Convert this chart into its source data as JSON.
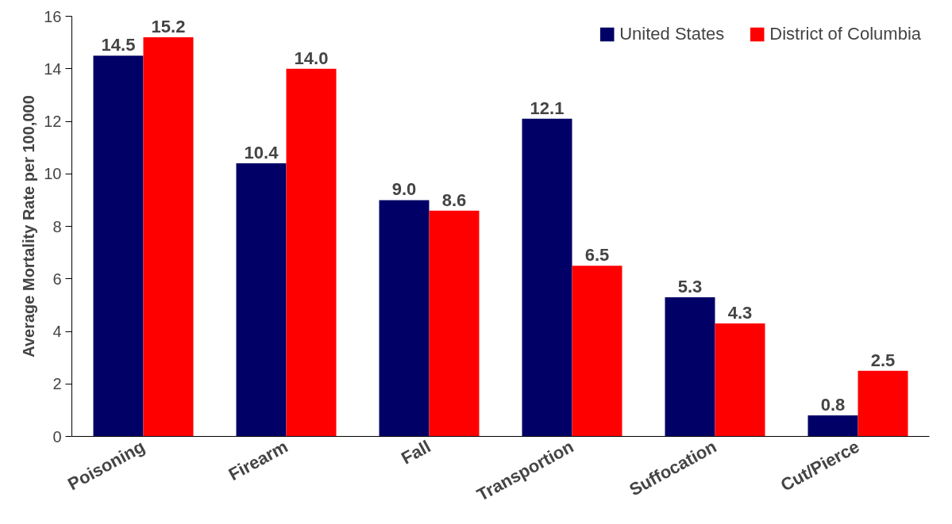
{
  "chart_data": {
    "type": "bar",
    "ylabel": "Average Mortality Rate per 100,000",
    "categories": [
      "Poisoning",
      "Firearm",
      "Fall",
      "Transportion",
      "Suffocation",
      "Cut/Pierce"
    ],
    "series": [
      {
        "name": "United States",
        "color": "#000066",
        "values": [
          14.5,
          10.4,
          9.0,
          12.1,
          5.3,
          0.8
        ],
        "value_labels": [
          "14.5",
          "10.4",
          "9.0",
          "12.1",
          "5.3",
          "0.8"
        ]
      },
      {
        "name": "District of Columbia",
        "color": "#ff0000",
        "values": [
          15.2,
          14.0,
          8.6,
          6.5,
          4.3,
          2.5
        ],
        "value_labels": [
          "15.2",
          "14.0",
          "8.6",
          "6.5",
          "4.3",
          "2.5"
        ]
      }
    ],
    "ylim": [
      0,
      16
    ],
    "yticks": [
      0,
      2,
      4,
      6,
      8,
      10,
      12,
      14,
      16
    ],
    "grid": false,
    "legend": "top right"
  }
}
